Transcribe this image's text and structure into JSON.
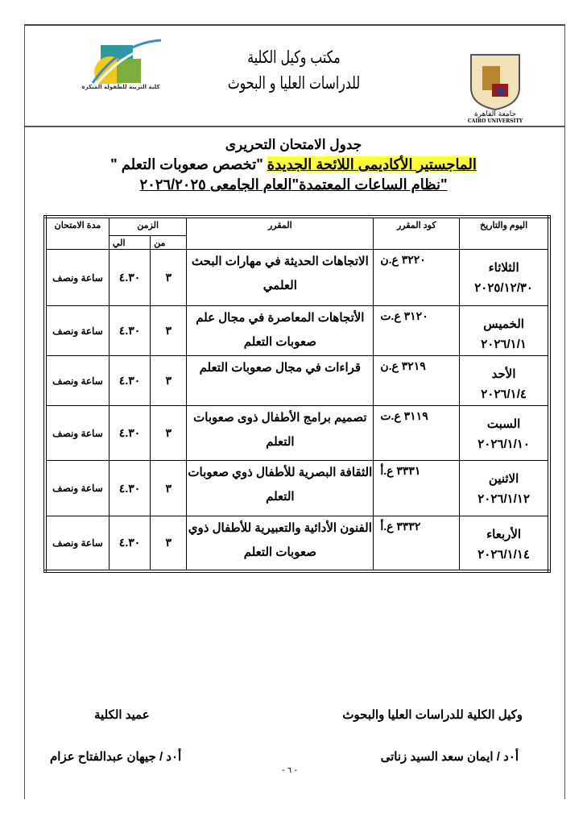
{
  "header": {
    "office_line1": "مكتب وكيل الكلية",
    "office_line2": "للدراسات العليا و البحوث",
    "left_logo_text": "كلية التربية للطفولة المبكرة",
    "right_logo_text_ar": "جامعة القاهرة",
    "right_logo_text_en": "CAIRO UNIVERSITY"
  },
  "titles": {
    "line1": "جدول الامتحان التحريرى",
    "line2_highlight": "الماجستير الأكاديمى اللائحة الجديدة",
    "line2_rest": " \"تخصص صعوبات التعلم \"",
    "line3": "\"نظام الساعات المعتمدة\"العام الجامعى ٢٠٢٦/٢٠٢٥"
  },
  "table": {
    "headers": {
      "day": "اليوم والتاريخ",
      "code": "كود المقرر",
      "course": "المقرر",
      "time": "الزمن",
      "from": "من",
      "to": "الي",
      "duration": "مدة الامتحان"
    },
    "rows": [
      {
        "day": "الثلاثاء",
        "date": "٢٠٢٥/١٢/٣٠",
        "code": "٣٢٢٠ ع.ن",
        "course": "الاتجاهات الحديثة في مهارات البحث العلمي",
        "from": "٣",
        "to": "٤.٣٠",
        "duration": "ساعة ونصف"
      },
      {
        "day": "الخميس",
        "date": "٢٠٢٦/١/١",
        "code": "٣١٢٠ ع.ت",
        "course": "الأتجاهات المعاصرة في مجال علم صعوبات التعلم",
        "from": "٣",
        "to": "٤.٣٠",
        "duration": "ساعة ونصف"
      },
      {
        "day": "الأحد",
        "date": "٢٠٢٦/١/٤",
        "code": "٣٢١٩ ع.ن",
        "course": "قراءات في مجال صعوبات التعلم",
        "from": "٣",
        "to": "٤.٣٠",
        "duration": "ساعة ونصف"
      },
      {
        "day": "السبت",
        "date": "٢٠٢٦/١/١٠",
        "code": "٣١١٩ ع.ت",
        "course": "تصميم برامج الأطفال ذوى صعوبات التعلم",
        "from": "٣",
        "to": "٤.٣٠",
        "duration": "ساعة ونصف"
      },
      {
        "day": "الاثنين",
        "date": "٢٠٢٦/١/١٢",
        "code": "٣٣٣١ ع.أ",
        "course": "الثقافة البصرية للأطفال ذوي صعوبات التعلم",
        "from": "٣",
        "to": "٤.٣٠",
        "duration": "ساعة ونصف"
      },
      {
        "day": "الأربعاء",
        "date": "٢٠٢٦/١/١٤",
        "code": "٣٣٣٢ ع.أ",
        "course": "الفنون الأدائية والتعبيرية للأطفال ذوي صعوبات التعلم",
        "from": "٣",
        "to": "٤.٣٠",
        "duration": "ساعة ونصف"
      }
    ]
  },
  "signatures": {
    "vice_title": "وكيل الكلية للدراسات العليا والبحوث",
    "vice_name": "أ٠د / ايمان سعد السيد زناتى",
    "dean_title": "عميد الكلية",
    "dean_name": "أ٠د / جيهان عبدالفتاح عزام"
  },
  "page_number": "- ٦ -"
}
